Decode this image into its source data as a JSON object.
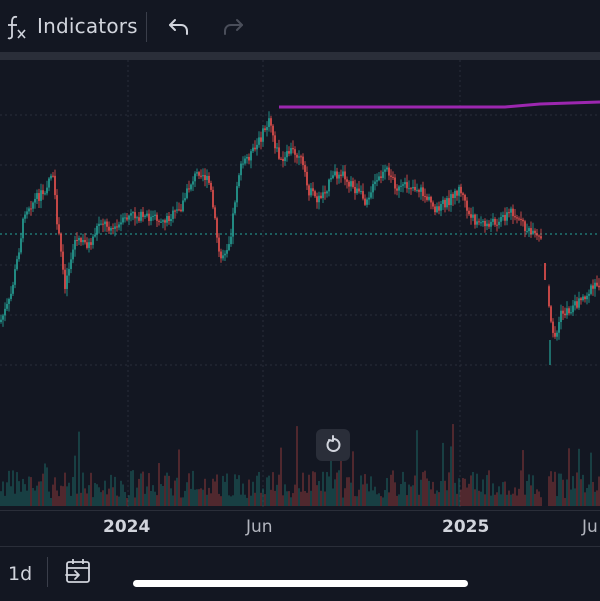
{
  "toolbar": {
    "indicators_label": "Indicators",
    "icons": [
      "fx-icon",
      "undo-icon",
      "redo-icon"
    ]
  },
  "time_axis": {
    "labels": [
      "2024",
      "Jun",
      "2025",
      "Ju"
    ]
  },
  "bottom_bar": {
    "interval": "1d",
    "icons": [
      "goto-date-icon"
    ]
  },
  "colors": {
    "background": "#131722",
    "up_candle": "#26a69a",
    "down_candle": "#ef5350",
    "indicator_line": "#9c27b0",
    "price_line": "#26a69a"
  }
}
